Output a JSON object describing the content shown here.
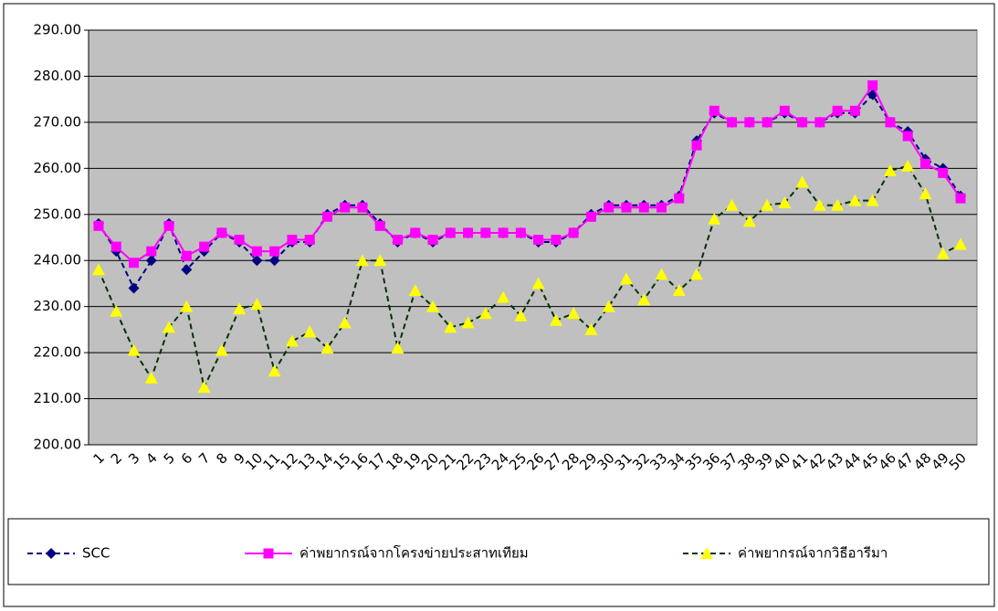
{
  "chart_data": {
    "type": "line",
    "categories": [
      "1",
      "2",
      "3",
      "4",
      "5",
      "6",
      "7",
      "8",
      "9",
      "10",
      "11",
      "12",
      "13",
      "14",
      "15",
      "16",
      "17",
      "18",
      "19",
      "20",
      "21",
      "22",
      "23",
      "24",
      "25",
      "26",
      "27",
      "28",
      "29",
      "30",
      "31",
      "32",
      "33",
      "34",
      "35",
      "36",
      "37",
      "38",
      "39",
      "40",
      "41",
      "42",
      "43",
      "44",
      "45",
      "46",
      "47",
      "48",
      "49",
      "50"
    ],
    "series": [
      {
        "name": "SCC",
        "color": "#000080",
        "marker": "diamond",
        "dash": true,
        "values": [
          248,
          242,
          234,
          240,
          248,
          238,
          242,
          246,
          244,
          240,
          240,
          244,
          244,
          250,
          252,
          252,
          248,
          244,
          246,
          244,
          246,
          246,
          246,
          246,
          246,
          244,
          244,
          246,
          250,
          252,
          252,
          252,
          252,
          254,
          266,
          272,
          270,
          270,
          270,
          272,
          270,
          270,
          272,
          272,
          276,
          270,
          268,
          262,
          260,
          254
        ]
      },
      {
        "name": "ค่าพยากรณ์จากโครงข่ายประสาทเทียม",
        "color": "#ff00ff",
        "marker": "square",
        "dash": false,
        "values": [
          247.5,
          243,
          239.5,
          242,
          247.5,
          241,
          243,
          246,
          244.5,
          242,
          242,
          244.5,
          244.5,
          249.5,
          251.5,
          251.5,
          247.5,
          244.5,
          246,
          244.5,
          246,
          246,
          246,
          246,
          246,
          244.5,
          244.5,
          246,
          249.5,
          251.5,
          251.5,
          251.5,
          251.5,
          253.5,
          265,
          272.5,
          270,
          270,
          270,
          272.5,
          270,
          270,
          272.5,
          272.5,
          278,
          270,
          267,
          261,
          259,
          253.5
        ]
      },
      {
        "name": "ค่าพยากรณ์จากวิธีอารีมา",
        "color": "#003300",
        "marker_color": "#ffff00",
        "marker": "triangle",
        "dash": true,
        "values": [
          238,
          229,
          220.5,
          214.5,
          225.5,
          230,
          212.5,
          220.5,
          229.5,
          230.5,
          216,
          222.5,
          224.5,
          221,
          226.5,
          240,
          240,
          221,
          233.5,
          230,
          225.5,
          226.5,
          228.5,
          232,
          228,
          235,
          227,
          228.5,
          225,
          230,
          236,
          231.5,
          237,
          233.5,
          237,
          249,
          252,
          248.5,
          252,
          252.5,
          257,
          252,
          252,
          253,
          253,
          259.5,
          260.5,
          254.5,
          241.5,
          243.5
        ]
      }
    ],
    "ylim": [
      200,
      290
    ],
    "yticks": [
      {
        "value": 200,
        "label": "200.00"
      },
      {
        "value": 210,
        "label": "210.00"
      },
      {
        "value": 220,
        "label": "220.00"
      },
      {
        "value": 230,
        "label": "230.00"
      },
      {
        "value": 240,
        "label": "240.00"
      },
      {
        "value": 250,
        "label": "250.00"
      },
      {
        "value": 260,
        "label": "260.00"
      },
      {
        "value": 270,
        "label": "270.00"
      },
      {
        "value": 280,
        "label": "280.00"
      },
      {
        "value": 290,
        "label": "290.00"
      }
    ],
    "grid": true
  }
}
